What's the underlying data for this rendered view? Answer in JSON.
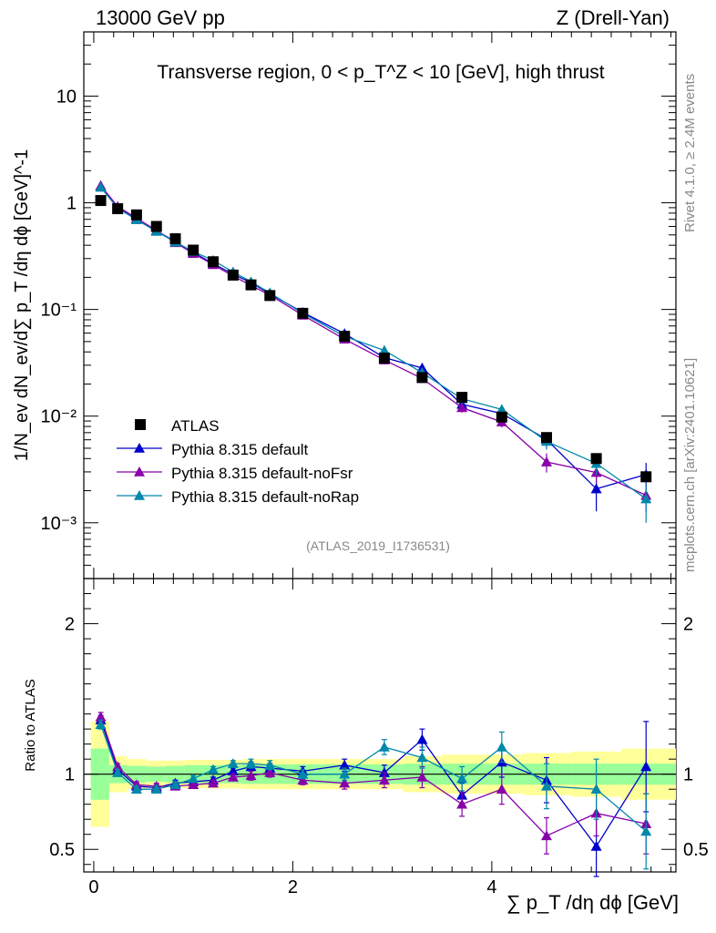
{
  "header": {
    "left": "13000 GeV pp",
    "right": "Z (Drell-Yan)"
  },
  "side_labels": {
    "rivet": "Rivet 4.1.0, ≥ 2.4M events",
    "mcplots": "mcplots.cern.ch [arXiv:2401.10621]"
  },
  "chart_data": {
    "type": "scatter",
    "title": "Transverse region, 0 < p_T^Z < 10 [GeV], high thrust",
    "analysis_label": "(ATLAS_2019_I1736531)",
    "xlabel": "∑ p_T /dη dϕ [GeV]",
    "ylabel": "1/N_ev dN_ev/d∑ p_T /dη dϕ [GeV]^-1",
    "ratio_ylabel": "Ratio to ATLAS",
    "xlim": [
      -0.1,
      5.85
    ],
    "ylim": [
      0.0003,
      40
    ],
    "yscale": "log",
    "ratio_ylim": [
      0.35,
      2.3
    ],
    "x_ticks": [
      "0",
      "2",
      "4"
    ],
    "y_ticks": [
      "10^-3",
      "10^-2",
      "10^-1",
      "1",
      "10"
    ],
    "ratio_ticks": [
      "0.5",
      "1",
      "2"
    ],
    "x": [
      0.07,
      0.24,
      0.43,
      0.63,
      0.82,
      1.0,
      1.2,
      1.4,
      1.58,
      1.77,
      2.1,
      2.52,
      2.92,
      3.3,
      3.7,
      4.1,
      4.55,
      5.05,
      5.55
    ],
    "reference": {
      "name": "ATLAS",
      "values": [
        1.05,
        0.88,
        0.77,
        0.6,
        0.46,
        0.36,
        0.28,
        0.21,
        0.17,
        0.135,
        0.092,
        0.056,
        0.035,
        0.023,
        0.015,
        0.0098,
        0.0063,
        0.004,
        0.0027
      ],
      "band_inner": [
        0.17,
        0.06,
        0.055,
        0.05,
        0.055,
        0.06,
        0.06,
        0.06,
        0.065,
        0.065,
        0.065,
        0.065,
        0.065,
        0.07,
        0.07,
        0.07,
        0.07,
        0.07,
        0.07
      ],
      "band_outer": [
        0.35,
        0.12,
        0.1,
        0.09,
        0.09,
        0.095,
        0.095,
        0.095,
        0.1,
        0.1,
        0.1,
        0.1,
        0.1,
        0.12,
        0.13,
        0.13,
        0.14,
        0.15,
        0.17
      ]
    },
    "series": [
      {
        "name": "Pythia 8.315 default",
        "color": "#0000cc",
        "ratio": [
          1.36,
          1.03,
          0.92,
          0.91,
          0.94,
          0.95,
          0.96,
          1.02,
          1.05,
          1.04,
          1.02,
          1.06,
          1.01,
          1.23,
          0.86,
          1.08,
          0.96,
          0.52,
          1.05
        ],
        "ratio_err": [
          0.03,
          0.02,
          0.02,
          0.02,
          0.02,
          0.02,
          0.02,
          0.02,
          0.03,
          0.03,
          0.03,
          0.04,
          0.05,
          0.07,
          0.08,
          0.1,
          0.15,
          0.2,
          0.3
        ]
      },
      {
        "name": "Pythia 8.315 default-noFsr",
        "color": "#8800aa",
        "ratio": [
          1.38,
          1.05,
          0.93,
          0.92,
          0.92,
          0.93,
          0.94,
          0.98,
          0.99,
          1.01,
          0.96,
          0.94,
          0.96,
          0.98,
          0.8,
          0.9,
          0.59,
          0.74,
          0.67
        ],
        "ratio_err": [
          0.03,
          0.02,
          0.02,
          0.02,
          0.02,
          0.02,
          0.02,
          0.02,
          0.03,
          0.03,
          0.03,
          0.04,
          0.05,
          0.07,
          0.08,
          0.1,
          0.12,
          0.15,
          0.2
        ]
      },
      {
        "name": "Pythia 8.315 default-noRap",
        "color": "#0088aa",
        "ratio": [
          1.33,
          1.01,
          0.9,
          0.9,
          0.93,
          0.97,
          1.03,
          1.07,
          1.07,
          1.06,
          1.0,
          1.0,
          1.18,
          1.11,
          0.97,
          1.18,
          0.92,
          0.9,
          0.62
        ],
        "ratio_err": [
          0.03,
          0.02,
          0.02,
          0.02,
          0.02,
          0.02,
          0.02,
          0.02,
          0.03,
          0.03,
          0.03,
          0.04,
          0.05,
          0.07,
          0.08,
          0.1,
          0.15,
          0.2,
          0.25
        ]
      }
    ]
  }
}
